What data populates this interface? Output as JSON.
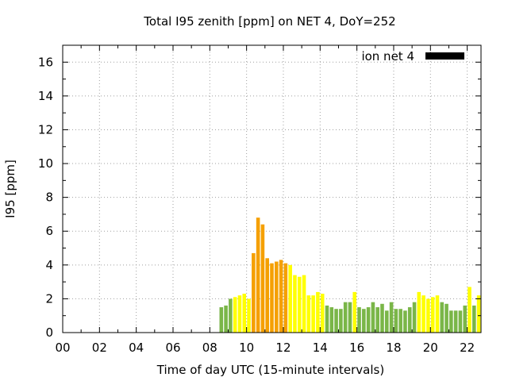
{
  "chart_data": {
    "type": "bar",
    "title": "Total I95 zenith [ppm] on NET 4, DoY=252",
    "xlabel": "Time of day UTC (15-minute intervals)",
    "ylabel": "I95 [ppm]",
    "xlim": [
      0,
      22.75
    ],
    "ylim": [
      0,
      17
    ],
    "xticks": [
      "00",
      "02",
      "04",
      "06",
      "08",
      "10",
      "12",
      "14",
      "16",
      "18",
      "20",
      "22"
    ],
    "yticks": [
      "0",
      "2",
      "4",
      "6",
      "8",
      "10",
      "12",
      "14",
      "16"
    ],
    "grid": true,
    "legend": {
      "placement": "top-right",
      "label": "ion net 4",
      "color": "#000000"
    },
    "color_levels": {
      "green": "#7ab648",
      "yellow": "#ffff00",
      "orange": "#f5a000"
    },
    "bar_width_hours": 0.25,
    "bars": [
      {
        "x": 8.5,
        "value": 1.5,
        "level": "green"
      },
      {
        "x": 8.75,
        "value": 1.6,
        "level": "green"
      },
      {
        "x": 9.0,
        "value": 2.0,
        "level": "green"
      },
      {
        "x": 9.25,
        "value": 2.1,
        "level": "yellow"
      },
      {
        "x": 9.5,
        "value": 2.2,
        "level": "yellow"
      },
      {
        "x": 9.75,
        "value": 2.3,
        "level": "yellow"
      },
      {
        "x": 10.0,
        "value": 2.0,
        "level": "yellow"
      },
      {
        "x": 10.25,
        "value": 4.7,
        "level": "orange"
      },
      {
        "x": 10.5,
        "value": 6.8,
        "level": "orange"
      },
      {
        "x": 10.75,
        "value": 6.4,
        "level": "orange"
      },
      {
        "x": 11.0,
        "value": 4.4,
        "level": "orange"
      },
      {
        "x": 11.25,
        "value": 4.1,
        "level": "orange"
      },
      {
        "x": 11.5,
        "value": 4.2,
        "level": "orange"
      },
      {
        "x": 11.75,
        "value": 4.3,
        "level": "orange"
      },
      {
        "x": 12.0,
        "value": 4.1,
        "level": "orange"
      },
      {
        "x": 12.25,
        "value": 4.0,
        "level": "yellow"
      },
      {
        "x": 12.5,
        "value": 3.4,
        "level": "yellow"
      },
      {
        "x": 12.75,
        "value": 3.3,
        "level": "yellow"
      },
      {
        "x": 13.0,
        "value": 3.4,
        "level": "yellow"
      },
      {
        "x": 13.25,
        "value": 2.2,
        "level": "yellow"
      },
      {
        "x": 13.5,
        "value": 2.2,
        "level": "yellow"
      },
      {
        "x": 13.75,
        "value": 2.4,
        "level": "yellow"
      },
      {
        "x": 14.0,
        "value": 2.3,
        "level": "yellow"
      },
      {
        "x": 14.25,
        "value": 1.6,
        "level": "green"
      },
      {
        "x": 14.5,
        "value": 1.5,
        "level": "green"
      },
      {
        "x": 14.75,
        "value": 1.4,
        "level": "green"
      },
      {
        "x": 15.0,
        "value": 1.4,
        "level": "green"
      },
      {
        "x": 15.25,
        "value": 1.8,
        "level": "green"
      },
      {
        "x": 15.5,
        "value": 1.8,
        "level": "green"
      },
      {
        "x": 15.75,
        "value": 2.4,
        "level": "yellow"
      },
      {
        "x": 16.0,
        "value": 1.5,
        "level": "green"
      },
      {
        "x": 16.25,
        "value": 1.4,
        "level": "green"
      },
      {
        "x": 16.5,
        "value": 1.5,
        "level": "green"
      },
      {
        "x": 16.75,
        "value": 1.8,
        "level": "green"
      },
      {
        "x": 17.0,
        "value": 1.5,
        "level": "green"
      },
      {
        "x": 17.25,
        "value": 1.7,
        "level": "green"
      },
      {
        "x": 17.5,
        "value": 1.3,
        "level": "green"
      },
      {
        "x": 17.75,
        "value": 1.8,
        "level": "green"
      },
      {
        "x": 18.0,
        "value": 1.4,
        "level": "green"
      },
      {
        "x": 18.25,
        "value": 1.4,
        "level": "green"
      },
      {
        "x": 18.5,
        "value": 1.3,
        "level": "green"
      },
      {
        "x": 18.75,
        "value": 1.5,
        "level": "green"
      },
      {
        "x": 19.0,
        "value": 1.8,
        "level": "green"
      },
      {
        "x": 19.25,
        "value": 2.4,
        "level": "yellow"
      },
      {
        "x": 19.5,
        "value": 2.2,
        "level": "yellow"
      },
      {
        "x": 19.75,
        "value": 2.0,
        "level": "yellow"
      },
      {
        "x": 20.0,
        "value": 2.1,
        "level": "yellow"
      },
      {
        "x": 20.25,
        "value": 2.2,
        "level": "yellow"
      },
      {
        "x": 20.5,
        "value": 1.8,
        "level": "green"
      },
      {
        "x": 20.75,
        "value": 1.7,
        "level": "green"
      },
      {
        "x": 21.0,
        "value": 1.3,
        "level": "green"
      },
      {
        "x": 21.25,
        "value": 1.3,
        "level": "green"
      },
      {
        "x": 21.5,
        "value": 1.3,
        "level": "green"
      },
      {
        "x": 21.75,
        "value": 1.6,
        "level": "green"
      },
      {
        "x": 22.0,
        "value": 2.7,
        "level": "yellow"
      },
      {
        "x": 22.25,
        "value": 1.6,
        "level": "green"
      },
      {
        "x": 22.5,
        "value": 2.2,
        "level": "yellow"
      }
    ]
  }
}
